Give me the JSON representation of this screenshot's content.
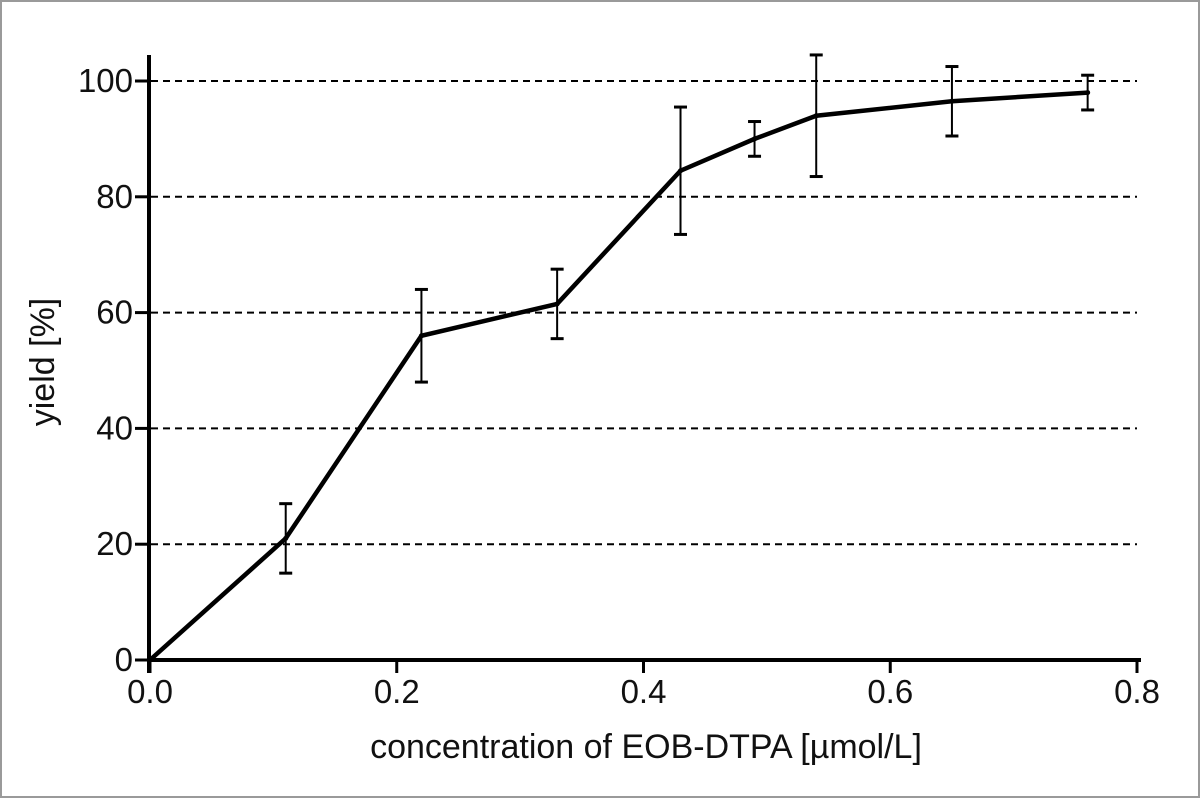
{
  "window": {
    "background": "#ffffff",
    "border_color": "#9a9a9a"
  },
  "chart_data": {
    "type": "line",
    "title": "",
    "xlabel": "concentration of EOB-DTPA [µmol/L]",
    "ylabel": "yield [%]",
    "series": [
      {
        "name": "yield",
        "x": [
          0,
          0.11,
          0.22,
          0.33,
          0.43,
          0.49,
          0.54,
          0.65,
          0.76
        ],
        "y": [
          0,
          21,
          56,
          61.5,
          84.5,
          90,
          94,
          96.5,
          98
        ],
        "yerr": [
          0,
          6,
          8,
          6,
          11,
          3,
          10.5,
          6,
          3
        ],
        "color": "#000000",
        "marker": "small-dot-with-error-bars"
      }
    ],
    "xlim": [
      0,
      0.8
    ],
    "ylim": [
      0,
      100
    ],
    "xticks": [
      0,
      0.2,
      0.4,
      0.6,
      0.8
    ],
    "xtick_labels": [
      "0.0",
      "0.2",
      "0.4",
      "0.6",
      "0.8"
    ],
    "yticks": [
      0,
      20,
      40,
      60,
      80,
      100
    ],
    "ytick_labels": [
      "0",
      "20",
      "40",
      "60",
      "80",
      "100"
    ],
    "grid": {
      "horizontal": true,
      "vertical": false,
      "style": "dashed",
      "color": "#000000"
    },
    "legend": "none",
    "axis_color": "#000000",
    "text_color": "#111111"
  }
}
